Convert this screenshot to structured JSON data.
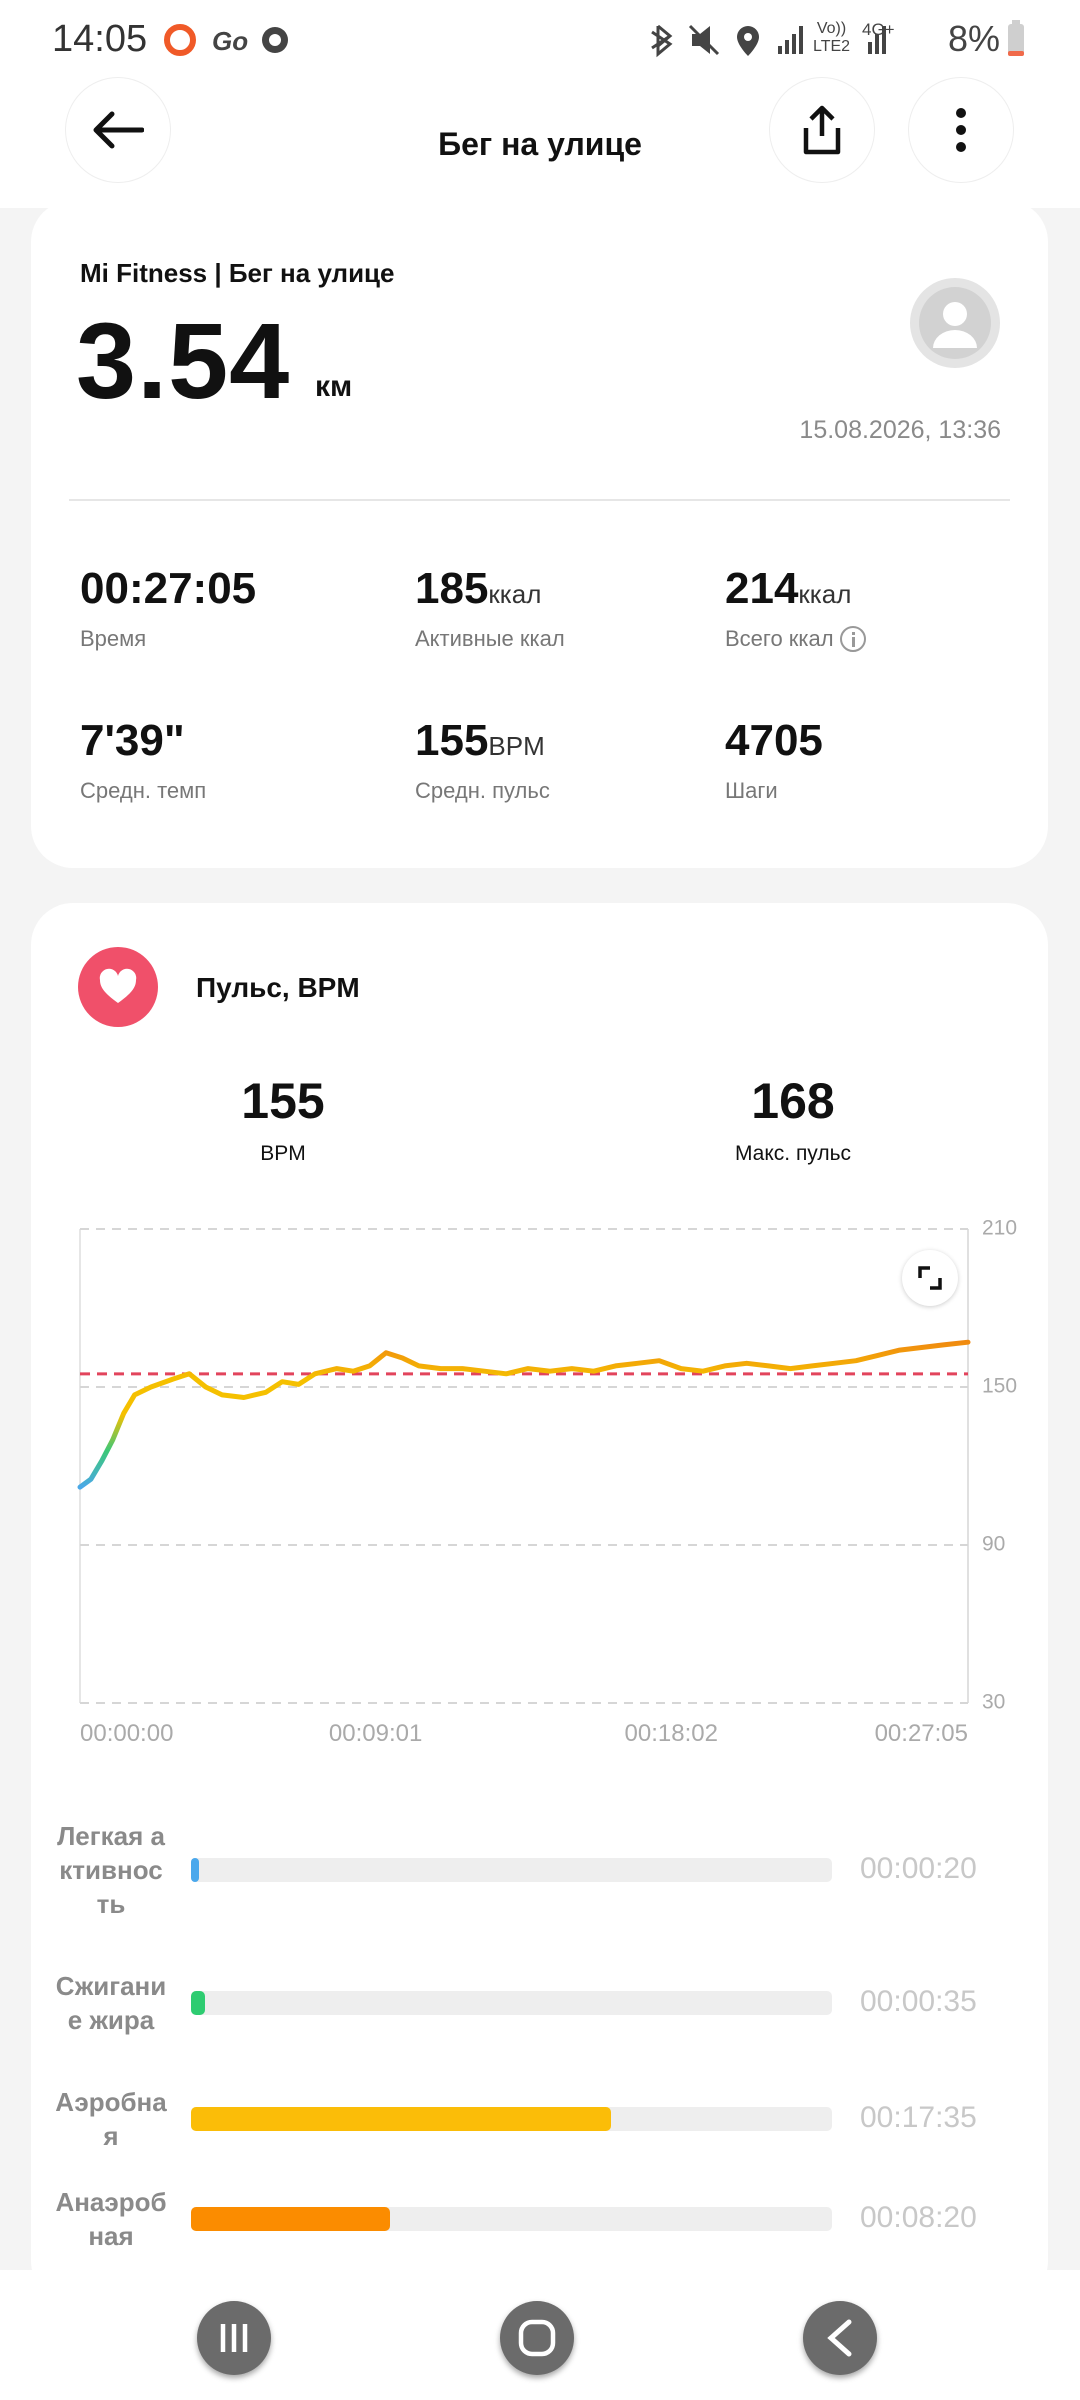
{
  "status_bar": {
    "time": "14:05",
    "volte": "Vo))",
    "lte": "LTE2",
    "network": "4G+",
    "battery": "8%"
  },
  "header": {
    "title": "Бег на улице"
  },
  "summary": {
    "source": "Mi Fitness | Бег на улице",
    "distance": "3.54",
    "distance_unit": "км",
    "datetime": "15.08.2026, 13:36",
    "stats": [
      {
        "value": "00:27:05",
        "label": "Время"
      },
      {
        "value": "185",
        "unit": "ккал",
        "label": "Активные ккал"
      },
      {
        "value": "214",
        "unit": "ккал",
        "label": "Всего ккал"
      },
      {
        "value": "7'39\"",
        "label": "Средн. темп"
      },
      {
        "value": "155",
        "unit": "BPM",
        "label": "Средн. пульс"
      },
      {
        "value": "4705",
        "label": "Шаги"
      }
    ]
  },
  "heart_rate": {
    "title": "Пульс, BPM",
    "avg": "155",
    "avg_label": "BPM",
    "max": "168",
    "max_label": "Макс. пульс",
    "zones": {
      "names": [
        "Легкая активность",
        "Сжигание жира",
        "Аэробная",
        "Анаэробная"
      ],
      "values": [
        20,
        35,
        1055,
        500
      ],
      "value_labels": [
        "00:00:20",
        "00:00:35",
        "00:17:35",
        "00:08:20"
      ],
      "colors": [
        "#4aa8ec",
        "#2ecc71",
        "#fbbd08",
        "#fb8c00"
      ]
    }
  },
  "chart_data": {
    "type": "line",
    "x": [
      0,
      20,
      40,
      60,
      80,
      100,
      130,
      170,
      200,
      230,
      260,
      300,
      340,
      370,
      400,
      430,
      470,
      500,
      530,
      560,
      590,
      620,
      660,
      700,
      740,
      780,
      820,
      860,
      900,
      940,
      980,
      1020,
      1060,
      1100,
      1140,
      1180,
      1220,
      1260,
      1300,
      1340,
      1380,
      1420,
      1460,
      1500,
      1540,
      1580,
      1625
    ],
    "values": [
      112,
      115,
      122,
      130,
      140,
      147,
      150,
      153,
      155,
      150,
      147,
      146,
      148,
      152,
      151,
      155,
      157,
      156,
      158,
      163,
      161,
      158,
      157,
      157,
      156,
      155,
      157,
      156,
      157,
      156,
      158,
      159,
      160,
      157,
      156,
      158,
      159,
      158,
      157,
      158,
      159,
      160,
      162,
      164,
      165,
      166,
      167
    ],
    "xlim": [
      0,
      1625
    ],
    "xticks": [
      {
        "value": 0,
        "label": "00:00:00"
      },
      {
        "value": 541,
        "label": "00:09:01"
      },
      {
        "value": 1082,
        "label": "00:18:02"
      },
      {
        "value": 1625,
        "label": "00:27:05"
      }
    ],
    "ylim": [
      30,
      210
    ],
    "yticks": [
      30,
      90,
      150,
      210
    ],
    "grid": true,
    "reference_line": 155,
    "reference_color": "#e2445c",
    "gradient": [
      "#f08a10",
      "#f5c000",
      "#f5c000",
      "#3cc878",
      "#4aa8e8"
    ]
  }
}
